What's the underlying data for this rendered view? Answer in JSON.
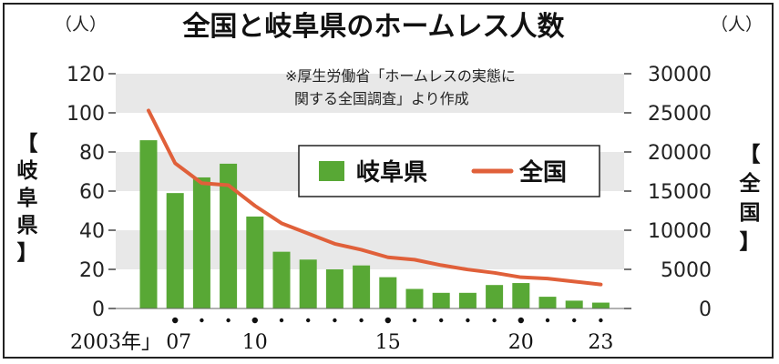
{
  "chart_data": {
    "type": "bar+line",
    "title": "全国と岐阜県のホームレス人数",
    "source_note_line1": "※厚生労働省「ホームレスの実態に",
    "source_note_line2": "関する全国調査」より作成",
    "left_unit": "（人）",
    "right_unit": "（人）",
    "left_axis_title": [
      "【",
      "岐",
      "阜",
      "県",
      "】"
    ],
    "right_axis_title": [
      "【",
      "全",
      "国",
      "】"
    ],
    "x": [
      2003,
      2007,
      2008,
      2009,
      2010,
      2011,
      2012,
      2013,
      2014,
      2015,
      2016,
      2017,
      2018,
      2019,
      2020,
      2021,
      2022,
      2023
    ],
    "x_tick_labels": [
      "2003年」",
      "07",
      "10",
      "15",
      "20",
      "23"
    ],
    "x_dot_years": [
      2007,
      2010,
      2015,
      2020
    ],
    "left_ylim": [
      0,
      120
    ],
    "left_yticks": [
      "0",
      "20",
      "40",
      "60",
      "80",
      "100",
      "120"
    ],
    "right_ylim": [
      0,
      30000
    ],
    "right_yticks": [
      "0",
      "5000",
      "10000",
      "15000",
      "20000",
      "25000",
      "30000"
    ],
    "grid_bands": true,
    "legend_position": "upper-middle",
    "series": [
      {
        "name": "岐阜県",
        "type": "bar",
        "axis": "left",
        "color": "#58a835",
        "values": [
          86,
          59,
          67,
          74,
          47,
          29,
          25,
          20,
          22,
          16,
          10,
          8,
          8,
          12,
          13,
          6,
          4,
          3
        ]
      },
      {
        "name": "全国",
        "type": "line",
        "axis": "right",
        "color": "#e0603a",
        "values": [
          25296,
          18564,
          16018,
          15759,
          13124,
          10890,
          9576,
          8265,
          7508,
          6541,
          6235,
          5534,
          4977,
          4555,
          3992,
          3824,
          3448,
          3065
        ]
      }
    ]
  }
}
